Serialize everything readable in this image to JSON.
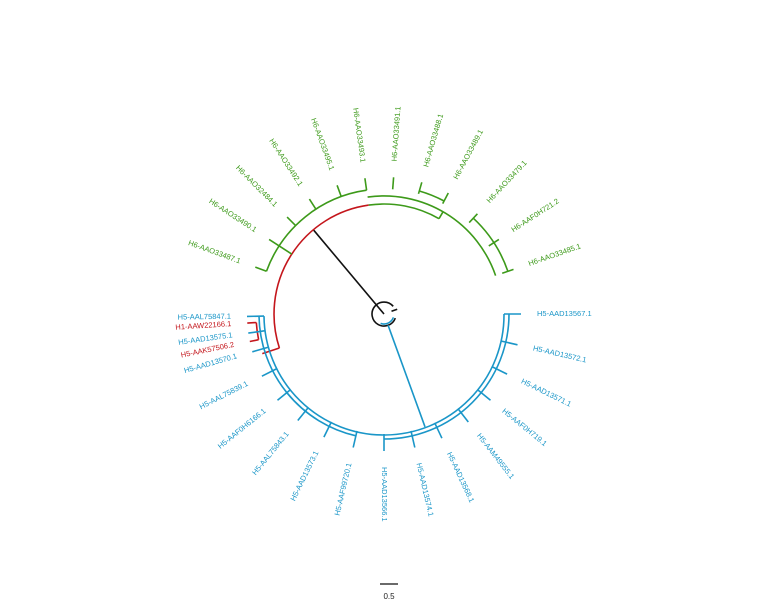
{
  "colors": {
    "root": "#111111",
    "H1": "#c4161c",
    "H6": "#3d9a1a",
    "H5": "#1a96c8"
  },
  "scale_bar": {
    "label": "0.5"
  },
  "clades": [
    {
      "id": "H1",
      "color_key": "H1",
      "leaves": [
        "H1-AAW22166.1",
        "H5-AAK57506.2"
      ]
    },
    {
      "id": "H6",
      "color_key": "H6",
      "leaves": [
        "H6-AAO33487.1",
        "H6-AAO33490.1",
        "H6-AAO32484.1",
        "H6-AAO33492.1",
        "H6-AAO33495.1",
        "H6-AAO33493.1",
        "H6-AAO33491.1",
        "H6-AAO33488.1",
        "H6-AAO33489.1",
        "H6-AAO33479.1",
        "H6-AAF0H721.2",
        "H6-AAO33485.1"
      ]
    },
    {
      "id": "H5",
      "color_key": "H5",
      "leaves": [
        "H5-AAD13567.1",
        "H5-AAD13572.1",
        "H5-AAD13571.1",
        "H5-AAF0H719.1",
        "H5-AAM49555.1",
        "H5-AAD13568.1",
        "H5-AAD13574.1",
        "H5-AAD13566.1",
        "H5-AAF99720.1",
        "H5-AAD13573.1",
        "H5-AAL75843.1",
        "H5-AAF0H6166.1",
        "H5-AAL75839.1",
        "H5-AAD13570.1",
        "H5-AAD13575.1",
        "H5-AAL75847.1"
      ]
    }
  ]
}
